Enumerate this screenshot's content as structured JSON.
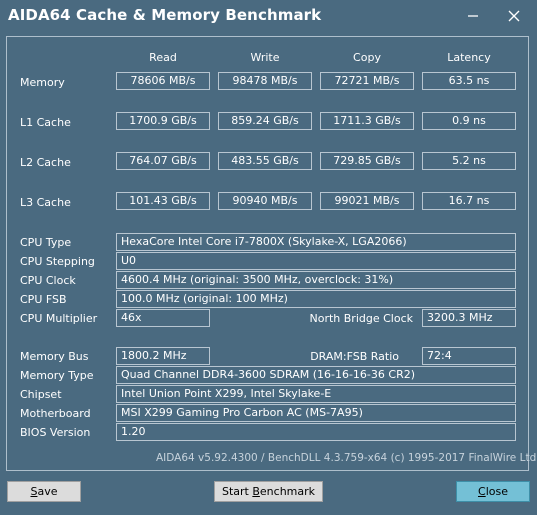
{
  "window": {
    "title": "AIDA64 Cache & Memory Benchmark"
  },
  "icons": {
    "minimize": "minimize-icon",
    "close": "close-icon"
  },
  "columns": [
    "Read",
    "Write",
    "Copy",
    "Latency"
  ],
  "bench_rows": [
    {
      "label": "Memory",
      "read": "78606 MB/s",
      "write": "98478 MB/s",
      "copy": "72721 MB/s",
      "latency": "63.5 ns"
    },
    {
      "label": "L1 Cache",
      "read": "1700.9 GB/s",
      "write": "859.24 GB/s",
      "copy": "1711.3 GB/s",
      "latency": "0.9 ns"
    },
    {
      "label": "L2 Cache",
      "read": "764.07 GB/s",
      "write": "483.55 GB/s",
      "copy": "729.85 GB/s",
      "latency": "5.2 ns"
    },
    {
      "label": "L3 Cache",
      "read": "101.43 GB/s",
      "write": "90940 MB/s",
      "copy": "99021 MB/s",
      "latency": "16.7 ns"
    }
  ],
  "cpu": {
    "type_label": "CPU Type",
    "type": "HexaCore Intel Core i7-7800X  (Skylake-X, LGA2066)",
    "stepping_label": "CPU Stepping",
    "stepping": "U0",
    "clock_label": "CPU Clock",
    "clock": "4600.4 MHz  (original: 3500 MHz, overclock: 31%)",
    "fsb_label": "CPU FSB",
    "fsb": "100.0 MHz  (original: 100 MHz)",
    "multiplier_label": "CPU Multiplier",
    "multiplier": "46x",
    "nb_clock_label": "North Bridge Clock",
    "nb_clock": "3200.3 MHz"
  },
  "memory": {
    "bus_label": "Memory Bus",
    "bus": "1800.2 MHz",
    "ratio_label": "DRAM:FSB Ratio",
    "ratio": "72:4",
    "type_label": "Memory Type",
    "type": "Quad Channel DDR4-3600 SDRAM  (16-16-16-36 CR2)",
    "chipset_label": "Chipset",
    "chipset": "Intel Union Point X299, Intel Skylake-E",
    "motherboard_label": "Motherboard",
    "motherboard": "MSI X299 Gaming Pro Carbon AC (MS-7A95)",
    "bios_label": "BIOS Version",
    "bios": "1.20"
  },
  "footer": "AIDA64 v5.92.4300 / BenchDLL 4.3.759-x64  (c) 1995-2017 FinalWire Ltd.",
  "buttons": {
    "save_mn": "S",
    "save_rest": "ave",
    "start_pre": "Start ",
    "start_mn": "B",
    "start_rest": "enchmark",
    "close_mn": "C",
    "close_rest": "lose"
  }
}
